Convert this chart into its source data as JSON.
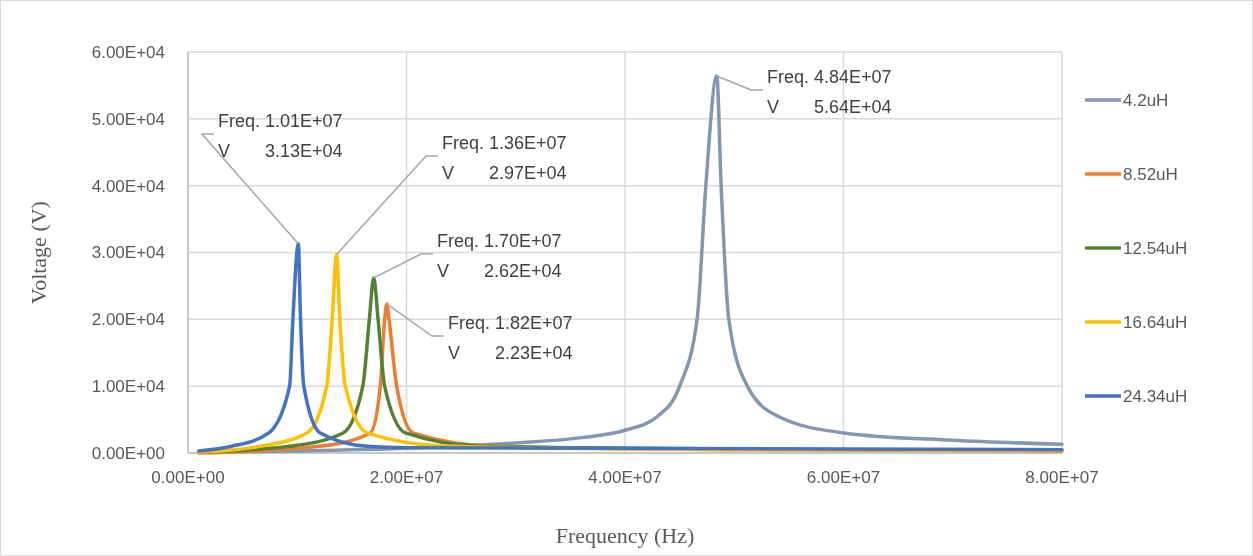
{
  "chart_data": {
    "type": "line",
    "xlabel": "Frequency (Hz)",
    "ylabel": "Voltage (V)",
    "xlim": [
      0,
      80000000
    ],
    "ylim": [
      0,
      60000
    ],
    "xticks": [
      {
        "value": 0,
        "label": "0.00E+00"
      },
      {
        "value": 20000000,
        "label": "2.00E+07"
      },
      {
        "value": 40000000,
        "label": "4.00E+07"
      },
      {
        "value": 60000000,
        "label": "6.00E+07"
      },
      {
        "value": 80000000,
        "label": "8.00E+07"
      }
    ],
    "yticks": [
      {
        "value": 0,
        "label": "0.00E+00"
      },
      {
        "value": 10000,
        "label": "1.00E+04"
      },
      {
        "value": 20000,
        "label": "2.00E+04"
      },
      {
        "value": 30000,
        "label": "3.00E+04"
      },
      {
        "value": 40000,
        "label": "4.00E+04"
      },
      {
        "value": 50000,
        "label": "5.00E+04"
      },
      {
        "value": 60000,
        "label": "6.00E+04"
      }
    ],
    "grid": true,
    "legend": "right",
    "marker": "none",
    "line_style": "solid",
    "series": [
      {
        "name": "4.2uH",
        "color": "#8497b0",
        "x": [
          1000000,
          10000000,
          20000000,
          30000000,
          36000000,
          40000000,
          43000000,
          45000000,
          46600000,
          47400000,
          48400000,
          48800000,
          49500000,
          51200000,
          54000000,
          60000000,
          70000000,
          80000000
        ],
        "values": [
          100,
          300,
          700,
          1500,
          2300,
          3400,
          5500,
          10000,
          20000,
          40000,
          56400,
          40000,
          20000,
          10000,
          5500,
          3000,
          1900,
          1300
        ]
      },
      {
        "name": "8.52uH",
        "color": "#ed7d31",
        "x": [
          1000000,
          12000000,
          16700000,
          17600000,
          18000000,
          18200000,
          18400000,
          19100000,
          20600000,
          28000000,
          50000000,
          80000000
        ],
        "values": [
          0,
          1000,
          3000,
          10000,
          20000,
          22300,
          20000,
          10000,
          3000,
          1000,
          500,
          300
        ]
      },
      {
        "name": "12.54uH",
        "color": "#548235",
        "x": [
          1000000,
          9300000,
          14200000,
          16000000,
          16600000,
          17000000,
          17400000,
          18000000,
          19900000,
          27000000,
          50000000
        ],
        "values": [
          100,
          1000,
          3000,
          10000,
          20000,
          26200,
          20000,
          10000,
          3000,
          1000,
          600
        ]
      },
      {
        "name": "16.64uH",
        "color": "#ffc000",
        "x": [
          1000000,
          6600000,
          10900000,
          12700000,
          13200000,
          13600000,
          13900000,
          14400000,
          16400000,
          23700000,
          50000000,
          80000000
        ],
        "values": [
          100,
          1000,
          3000,
          10000,
          20000,
          29700,
          20000,
          10000,
          3000,
          1000,
          500,
          400
        ]
      },
      {
        "name": "24.34uH",
        "color": "#4472c4",
        "x": [
          1000000,
          4000000,
          7400000,
          9300000,
          9600000,
          10100000,
          10300000,
          10600000,
          12100000,
          16400000,
          20000000,
          40000000,
          80000000
        ],
        "values": [
          300,
          1000,
          3000,
          10000,
          20000,
          31300,
          20000,
          10000,
          3000,
          1000,
          800,
          700,
          500
        ]
      }
    ],
    "annotations": [
      {
        "text": "Freq. 4.84E+07\nV       5.64E+04",
        "x": 48400000,
        "y": 56400
      },
      {
        "text": "Freq. 1.82E+07\nV       2.23E+04",
        "x": 18200000,
        "y": 22300
      },
      {
        "text": "Freq. 1.70E+07\nV       2.62E+04",
        "x": 17000000,
        "y": 26200
      },
      {
        "text": "Freq. 1.36E+07\nV       2.97E+04",
        "x": 13600000,
        "y": 29700
      },
      {
        "text": "Freq. 1.01E+07\nV       3.13E+04",
        "x": 10100000,
        "y": 31300
      }
    ]
  }
}
